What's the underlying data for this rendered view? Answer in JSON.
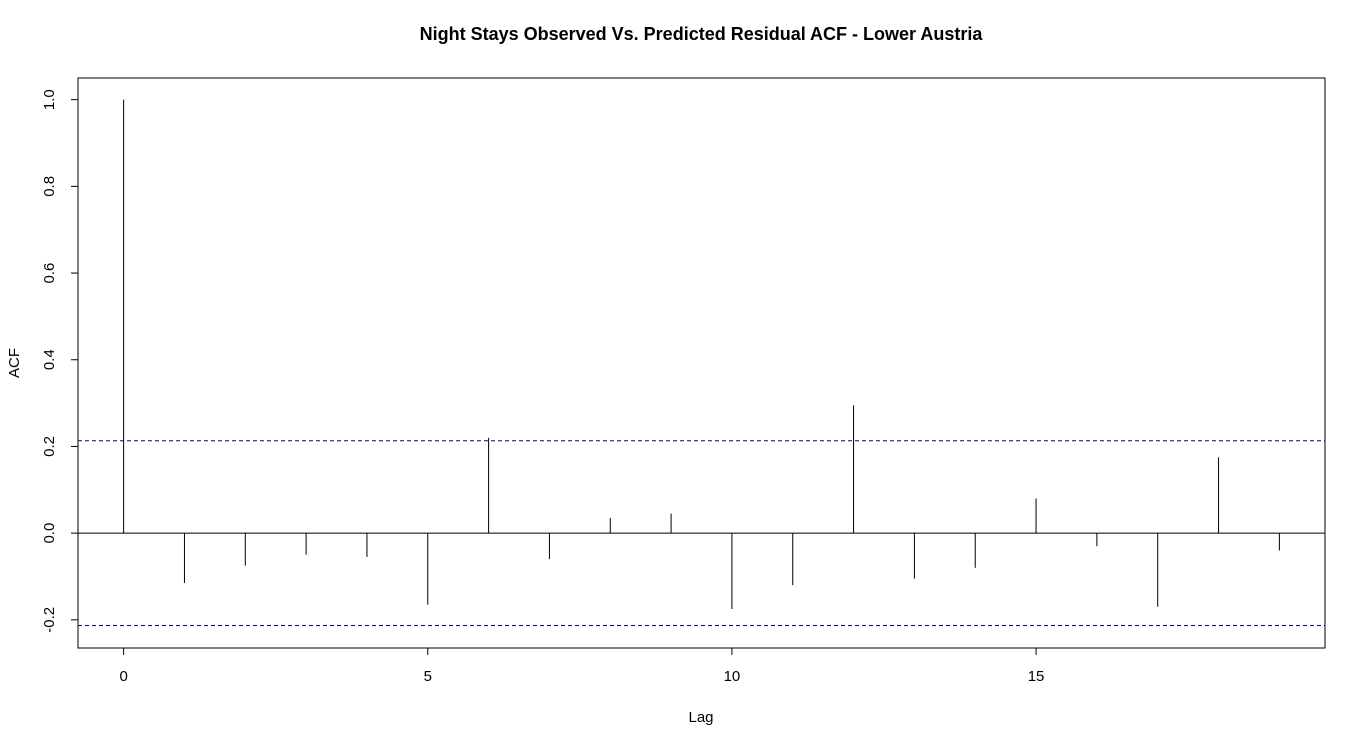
{
  "chart_data": {
    "type": "bar",
    "subtype": "acf-stem",
    "title": "Night Stays Observed Vs. Predicted Residual ACF - Lower Austria",
    "xlabel": "Lag",
    "ylabel": "ACF",
    "xlim": [
      -0.75,
      19.75
    ],
    "ylim": [
      -0.265,
      1.05
    ],
    "x_ticks": [
      0,
      5,
      10,
      15
    ],
    "x_tick_labels": [
      "0",
      "5",
      "10",
      "15"
    ],
    "y_ticks": [
      -0.2,
      0.0,
      0.2,
      0.4,
      0.6,
      0.8,
      1.0
    ],
    "y_tick_labels": [
      "-0.2",
      "0.0",
      "0.2",
      "0.4",
      "0.6",
      "0.8",
      "1.0"
    ],
    "lags": [
      0,
      1,
      2,
      3,
      4,
      5,
      6,
      7,
      8,
      9,
      10,
      11,
      12,
      13,
      14,
      15,
      16,
      17,
      18,
      19
    ],
    "values": [
      1.0,
      -0.115,
      -0.075,
      -0.05,
      -0.055,
      -0.165,
      0.22,
      -0.06,
      0.035,
      0.045,
      -0.175,
      -0.12,
      0.295,
      -0.105,
      -0.08,
      0.08,
      -0.03,
      -0.17,
      0.175,
      -0.04
    ],
    "confidence_bound": 0.213,
    "colors": {
      "stem": "#000000",
      "confidence_line": "#00008b",
      "zero_line": "#000000",
      "frame": "#000000"
    },
    "grid": false,
    "legend": "none"
  }
}
